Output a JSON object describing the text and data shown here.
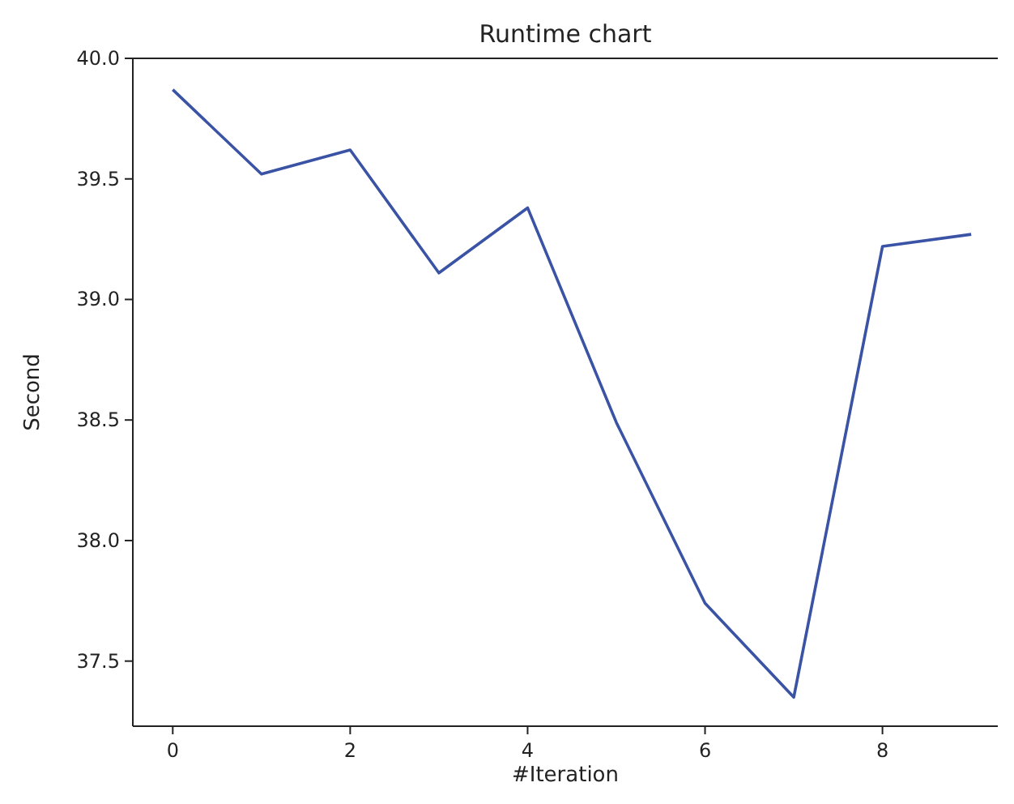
{
  "chart_data": {
    "type": "line",
    "title": "Runtime chart",
    "xlabel": "#Iteration",
    "ylabel": "Second",
    "x": [
      0,
      1,
      2,
      3,
      4,
      5,
      6,
      7,
      8,
      9
    ],
    "series": [
      {
        "color": "#3a53a4",
        "values": [
          39.87,
          39.52,
          39.62,
          39.11,
          39.38,
          38.49,
          37.74,
          37.35,
          39.22,
          39.27
        ]
      }
    ],
    "xlim": [
      -0.45,
      9.3
    ],
    "ylim": [
      37.23,
      40.0
    ],
    "xticks": [
      0,
      2,
      4,
      6,
      8
    ],
    "yticks": [
      37.5,
      {
        "value": 38,
        "label": "38.0"
      },
      38.5,
      {
        "value": 39,
        "label": "39.0"
      },
      39.5,
      {
        "value": 40,
        "label": "40.0"
      }
    ],
    "grid": false,
    "marker": "none",
    "line_style": "solid"
  }
}
